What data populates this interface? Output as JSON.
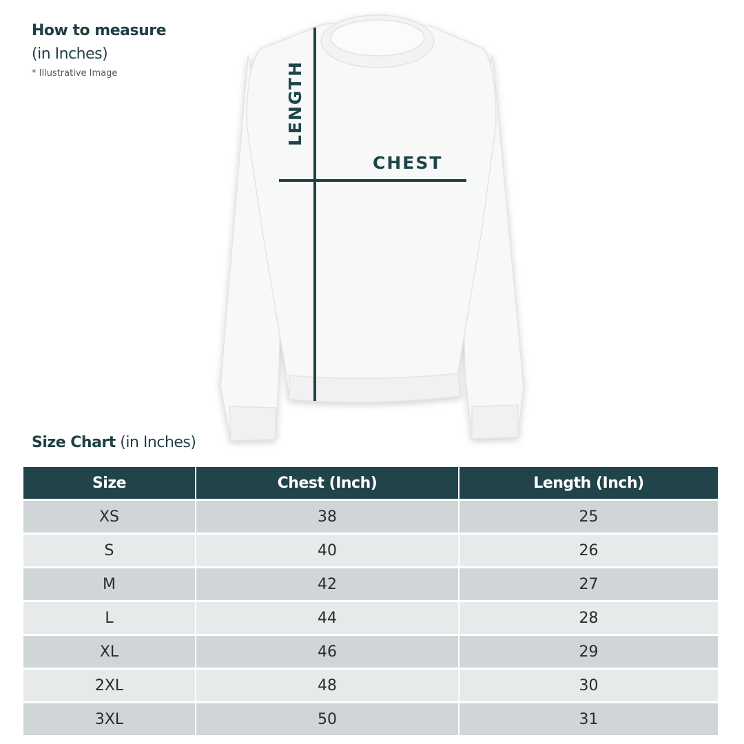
{
  "header": {
    "title": "How to measure",
    "unit": "(in Inches)",
    "note": "* Illustrative Image"
  },
  "illustration": {
    "length_label": "LENGTH",
    "chest_label": "CHEST",
    "line_color": "#1f4448"
  },
  "size_chart": {
    "title": "Size Chart",
    "unit": "(in Inches)",
    "columns": [
      "Size",
      "Chest (Inch)",
      "Length (Inch)"
    ],
    "rows": [
      [
        "XS",
        "38",
        "25"
      ],
      [
        "S",
        "40",
        "26"
      ],
      [
        "M",
        "42",
        "27"
      ],
      [
        "L",
        "44",
        "28"
      ],
      [
        "XL",
        "46",
        "29"
      ],
      [
        "2XL",
        "48",
        "30"
      ],
      [
        "3XL",
        "50",
        "31"
      ]
    ],
    "header_color": "#21434a"
  }
}
